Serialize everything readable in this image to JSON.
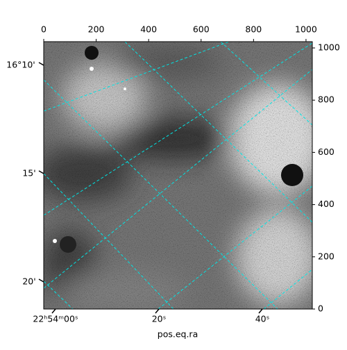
{
  "chart_data": {
    "type": "image",
    "xlabel": "pos.eq.ra",
    "xlim": [
      0,
      1024
    ],
    "xticks": [
      0,
      200,
      400,
      600,
      800,
      1000
    ],
    "ylim": [
      0,
      1024
    ],
    "yticks": [
      0,
      200,
      400,
      600,
      800,
      1000
    ],
    "ra_tick_labels": [
      "22ʰ54ᵐ00ˢ",
      "20ˢ",
      "40ˢ"
    ],
    "dec_tick_labels": [
      "16°10'",
      "15'",
      "20'"
    ],
    "grid": true,
    "grid_color": "#00e5e5"
  }
}
